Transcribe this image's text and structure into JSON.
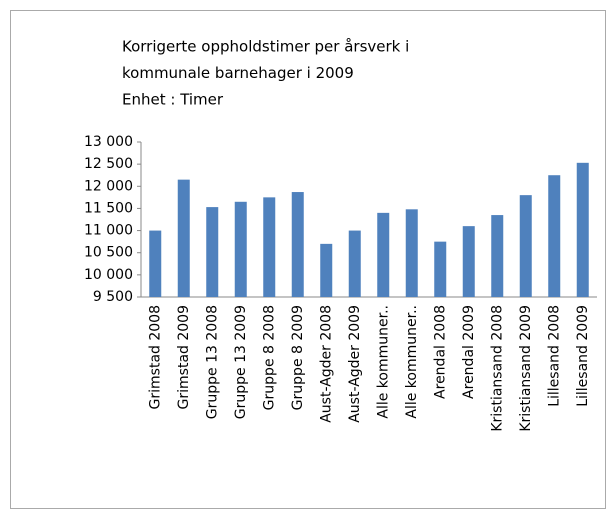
{
  "chart_data": {
    "type": "bar",
    "title": [
      "Korrigerte oppholdstimer per årsverk i",
      "kommunale barnehager i 2009",
      "Enhet : Timer"
    ],
    "categories": [
      "Grimstad 2008",
      "Grimstad 2009",
      "Gruppe 13 2008",
      "Gruppe 13 2009",
      "Gruppe 8 2008",
      "Gruppe 8 2009",
      "Aust-Agder 2008",
      "Aust-Agder 2009",
      "Alle kommuner..",
      "Alle kommuner..",
      "Arendal 2008",
      "Arendal 2009",
      "Kristiansand 2008",
      "Kristiansand 2009",
      "Lillesand 2008",
      "Lillesand 2009"
    ],
    "values": [
      11000,
      12150,
      11530,
      11650,
      11750,
      11870,
      10700,
      11000,
      11400,
      11480,
      10750,
      11100,
      11350,
      11800,
      12250,
      12530
    ],
    "color": "#4f81bd",
    "ylim": [
      9500,
      13000
    ],
    "yticks": [
      {
        "value": 9500,
        "label": "9 500"
      },
      {
        "value": 10000,
        "label": "10 000"
      },
      {
        "value": 10500,
        "label": "10 500"
      },
      {
        "value": 11000,
        "label": "11 000"
      },
      {
        "value": 11500,
        "label": "11 500"
      },
      {
        "value": 12000,
        "label": "12 000"
      },
      {
        "value": 12500,
        "label": "12 500"
      },
      {
        "value": 13000,
        "label": "13 000"
      }
    ],
    "grid": false
  }
}
